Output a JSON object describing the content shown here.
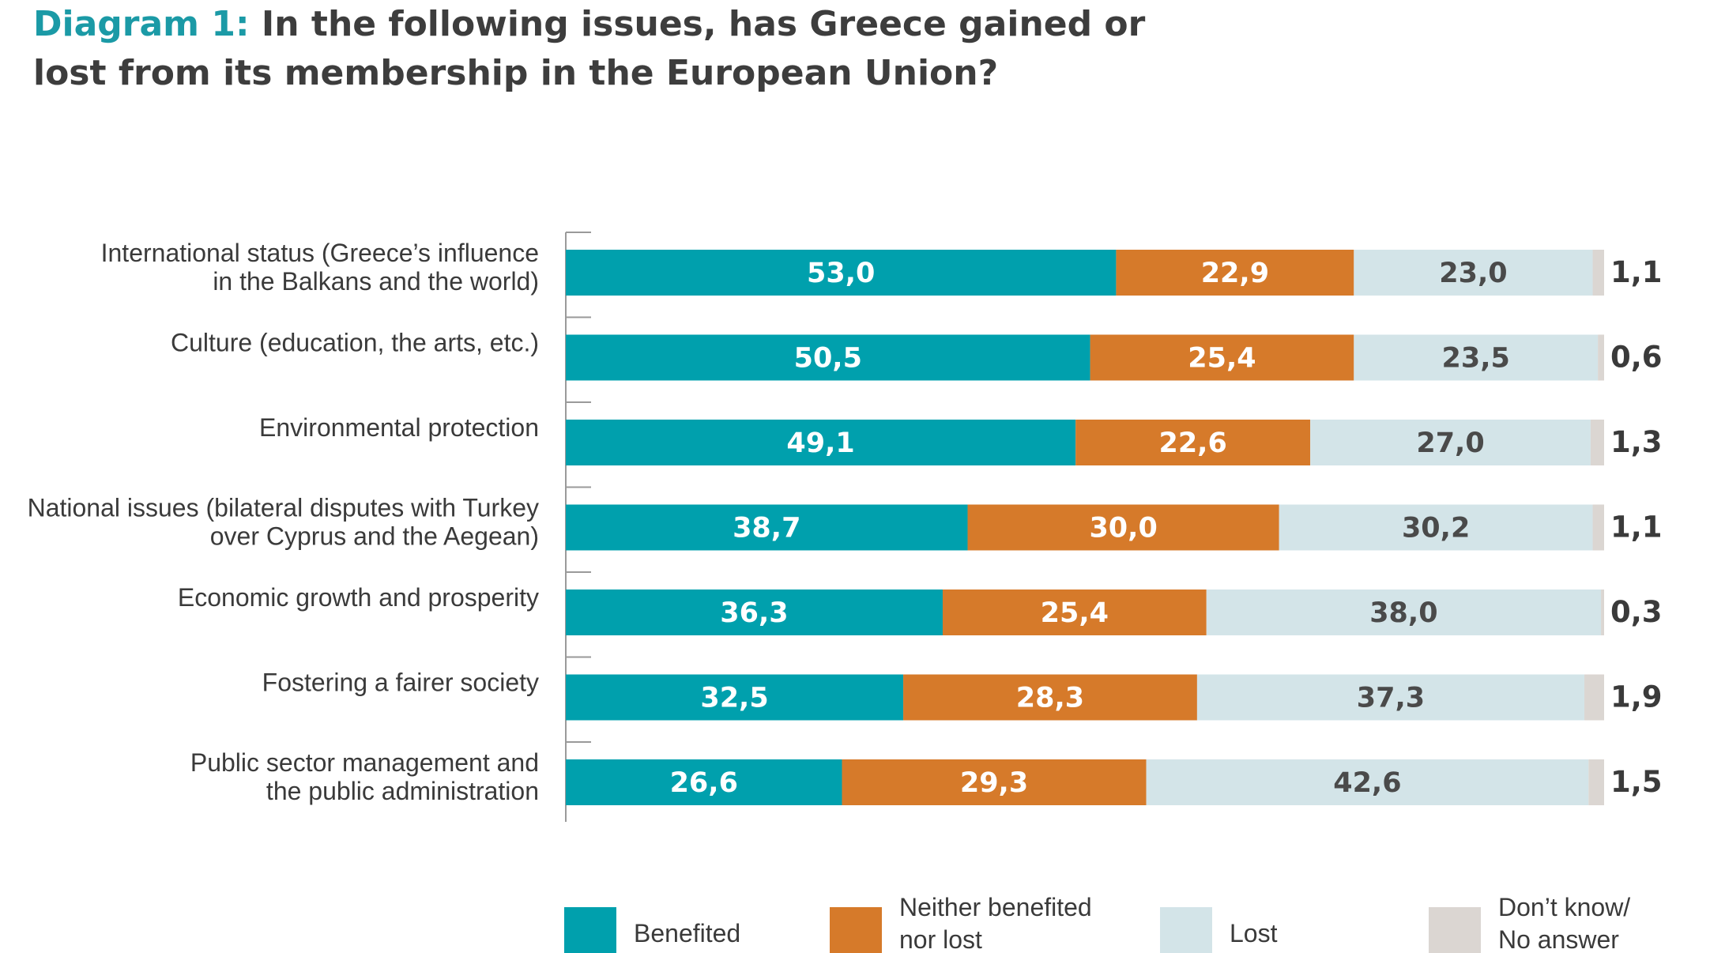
{
  "title": {
    "prefix": "Diagram 1:",
    "text": "In the following issues, has Greece gained or lost from its membership in the European Union?"
  },
  "colors": {
    "benefited": "#00a0ad",
    "neither": "#d67a2a",
    "lost": "#d3e4e8",
    "dont_know": "#dbd6d2",
    "title_accent": "#1b9aa6",
    "text": "#3a3a3a"
  },
  "chart_data": {
    "type": "bar",
    "orientation": "horizontal",
    "stacked": true,
    "categories": [
      [
        "International status (Greece’s influence",
        "in the Balkans and the world)"
      ],
      [
        "Culture (education, the arts, etc.)"
      ],
      [
        "Environmental protection"
      ],
      [
        "National issues (bilateral disputes with Turkey",
        "over Cyprus and the Aegean)"
      ],
      [
        "Economic growth and prosperity"
      ],
      [
        "Fostering a fairer society"
      ],
      [
        "Public sector management and",
        "the public administration"
      ]
    ],
    "series": [
      {
        "name": "Benefited",
        "color": "#00a0ad",
        "values": [
          53.0,
          50.5,
          49.1,
          38.7,
          36.3,
          32.5,
          26.6
        ],
        "labels": [
          "53,0",
          "50,5",
          "49,1",
          "38,7",
          "36,3",
          "32,5",
          "26,6"
        ]
      },
      {
        "name": "Neither benefited nor lost",
        "color": "#d67a2a",
        "values": [
          22.9,
          25.4,
          22.6,
          30.0,
          25.4,
          28.3,
          29.3
        ],
        "labels": [
          "22,9",
          "25,4",
          "22,6",
          "30,0",
          "25,4",
          "28,3",
          "29,3"
        ]
      },
      {
        "name": "Lost",
        "color": "#d3e4e8",
        "values": [
          23.0,
          23.5,
          27.0,
          30.2,
          38.0,
          37.3,
          42.6
        ],
        "labels": [
          "23,0",
          "23,5",
          "27,0",
          "30,2",
          "38,0",
          "37,3",
          "42,6"
        ]
      },
      {
        "name": "Don’t know/ No answer",
        "color": "#dbd6d2",
        "values": [
          1.1,
          0.6,
          1.3,
          1.1,
          0.3,
          1.9,
          1.5
        ],
        "labels": [
          "1,1",
          "0,6",
          "1,3",
          "1,1",
          "0,3",
          "1,9",
          "1,5"
        ]
      }
    ],
    "legend": [
      {
        "lines": [
          "Benefited"
        ],
        "color": "#00a0ad"
      },
      {
        "lines": [
          "Neither benefited",
          "nor lost"
        ],
        "color": "#d67a2a"
      },
      {
        "lines": [
          "Lost"
        ],
        "color": "#d3e4e8"
      },
      {
        "lines": [
          "Don’t know/",
          "No answer"
        ],
        "color": "#dbd6d2"
      }
    ],
    "legend_position": "bottom",
    "xlim": [
      0,
      100
    ],
    "grid": false
  }
}
